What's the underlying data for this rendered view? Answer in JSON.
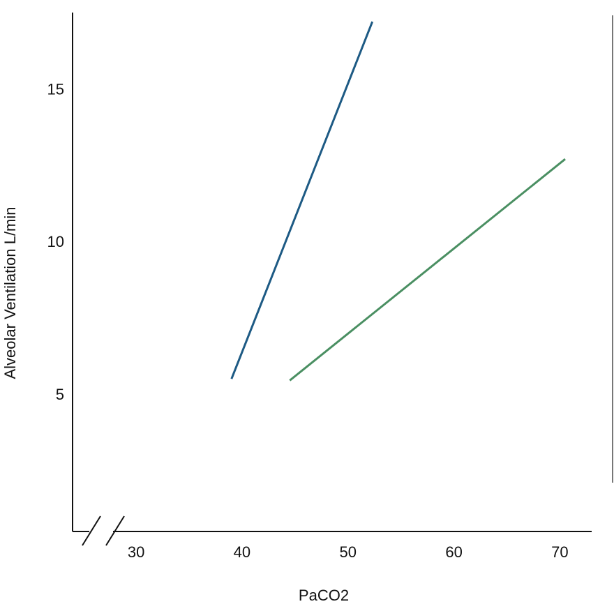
{
  "chart_data": {
    "type": "line",
    "xlabel": "PaCO2",
    "ylabel": "Alveolar Ventilation L/min",
    "x_ticks": [
      30,
      40,
      50,
      60,
      70
    ],
    "y_ticks": [
      5,
      10,
      15
    ],
    "xlim": [
      24,
      73
    ],
    "ylim": [
      0.5,
      17.5
    ],
    "axis_break": "x",
    "grid": false,
    "legend": "none",
    "series": [
      {
        "color": "#1d5a84",
        "x": [
          39.0,
          52.3
        ],
        "y": [
          5.5,
          17.2
        ]
      },
      {
        "color": "#4a8f62",
        "x": [
          44.5,
          70.5
        ],
        "y": [
          5.45,
          12.7
        ]
      }
    ]
  }
}
